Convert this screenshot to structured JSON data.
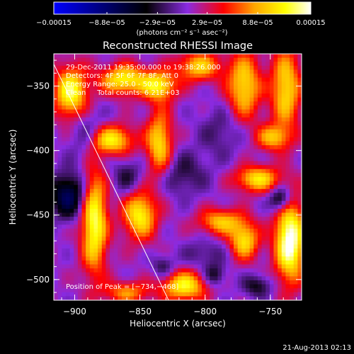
{
  "chart_data": {
    "type": "heatmap",
    "title": "Reconstructed RHESSI Image",
    "xlabel": "Heliocentric X (arcsec)",
    "ylabel": "Heliocentric Y (arcsec)",
    "xlim": [
      -916,
      -726
    ],
    "ylim": [
      -516,
      -325
    ],
    "x_ticks": [
      {
        "value": -900,
        "label": "−900"
      },
      {
        "value": -850,
        "label": "−850"
      },
      {
        "value": -800,
        "label": "−800"
      },
      {
        "value": -750,
        "label": "−750"
      }
    ],
    "y_ticks": [
      {
        "value": -350,
        "label": "−350"
      },
      {
        "value": -400,
        "label": "−400"
      },
      {
        "value": -450,
        "label": "−450"
      },
      {
        "value": -500,
        "label": "−500"
      }
    ],
    "colorbar": {
      "min": -0.00015,
      "max": 0.00015,
      "ticks": [
        {
          "value": -0.00015,
          "label": "−0.00015"
        },
        {
          "value": -8.8e-05,
          "label": "−8.8e−05"
        },
        {
          "value": -2.9e-05,
          "label": "−2.9e−05"
        },
        {
          "value": 2.9e-05,
          "label": "2.9e−05"
        },
        {
          "value": 8.8e-05,
          "label": "8.8e−05"
        },
        {
          "value": 0.00015,
          "label": "0.00015"
        }
      ],
      "unit_label": "(photons cm⁻² s⁻¹ asec⁻²)",
      "colors": [
        "#0000ff",
        "#000000",
        "#8a2be2",
        "#ff0000",
        "#ffa500",
        "#ffff00",
        "#ffffff"
      ]
    },
    "annotations": [
      "29-Dec-2011 19:35:00.000 to 19:38:26.000",
      "Detectors: 4F 5F 6F 7F 8F, Att 0",
      "Energy Range: 25.0 - 50.0 keV",
      "Clean     Total counts: 6.21E+03"
    ],
    "peak_label": "Position of Peak = [−734,−468]",
    "limb_line": {
      "x": [
        -916,
        -828
      ],
      "y": [
        -333,
        -516
      ]
    },
    "sources": [
      {
        "x": -903,
        "y": -355,
        "value": 0.00012,
        "sx": 9,
        "sy": 14
      },
      {
        "x": -862,
        "y": -345,
        "value": 0.00011,
        "sx": 13,
        "sy": 8
      },
      {
        "x": -835,
        "y": -350,
        "value": 0.0001,
        "sx": 9,
        "sy": 8
      },
      {
        "x": -805,
        "y": -335,
        "value": 9e-05,
        "sx": 12,
        "sy": 8
      },
      {
        "x": -770,
        "y": -350,
        "value": 0.0001,
        "sx": 9,
        "sy": 18
      },
      {
        "x": -738,
        "y": -352,
        "value": 0.0001,
        "sx": 8,
        "sy": 22
      },
      {
        "x": -748,
        "y": -390,
        "value": 8e-05,
        "sx": 9,
        "sy": 7
      },
      {
        "x": -872,
        "y": -392,
        "value": 0.00011,
        "sx": 12,
        "sy": 8
      },
      {
        "x": -835,
        "y": -395,
        "value": 0.0001,
        "sx": 7,
        "sy": 18
      },
      {
        "x": -760,
        "y": -422,
        "value": 0.0001,
        "sx": 12,
        "sy": 7
      },
      {
        "x": -885,
        "y": -455,
        "value": 0.000125,
        "sx": 7,
        "sy": 28
      },
      {
        "x": -850,
        "y": -450,
        "value": 0.00011,
        "sx": 9,
        "sy": 13
      },
      {
        "x": -788,
        "y": -455,
        "value": 8.5e-05,
        "sx": 12,
        "sy": 7
      },
      {
        "x": -770,
        "y": -470,
        "value": 0.0001,
        "sx": 8,
        "sy": 10
      },
      {
        "x": -735,
        "y": -470,
        "value": 0.00015,
        "sx": 8,
        "sy": 22
      },
      {
        "x": -816,
        "y": -505,
        "value": 0.00011,
        "sx": 12,
        "sy": 8
      },
      {
        "x": -860,
        "y": -510,
        "value": 7e-05,
        "sx": 12,
        "sy": 6
      },
      {
        "x": -905,
        "y": -435,
        "value": -9e-05,
        "sx": 10,
        "sy": 12
      },
      {
        "x": -890,
        "y": -388,
        "value": -4e-05,
        "sx": 10,
        "sy": 14
      },
      {
        "x": -860,
        "y": -420,
        "value": -4e-05,
        "sx": 8,
        "sy": 10
      },
      {
        "x": -818,
        "y": -418,
        "value": -4e-05,
        "sx": 14,
        "sy": 12
      },
      {
        "x": -788,
        "y": -385,
        "value": -3e-05,
        "sx": 12,
        "sy": 14
      },
      {
        "x": -800,
        "y": -480,
        "value": -3e-05,
        "sx": 12,
        "sy": 8
      },
      {
        "x": -742,
        "y": -438,
        "value": -8e-05,
        "sx": 6,
        "sy": 7
      },
      {
        "x": -793,
        "y": -497,
        "value": -5e-05,
        "sx": 6,
        "sy": 6
      },
      {
        "x": -760,
        "y": -505,
        "value": -5e-05,
        "sx": 8,
        "sy": 6
      },
      {
        "x": -832,
        "y": -490,
        "value": -4e-05,
        "sx": 6,
        "sy": 6
      }
    ],
    "background": 1e-05,
    "grid": false
  },
  "footer": {
    "date": "21-Aug-2013 02:13"
  }
}
